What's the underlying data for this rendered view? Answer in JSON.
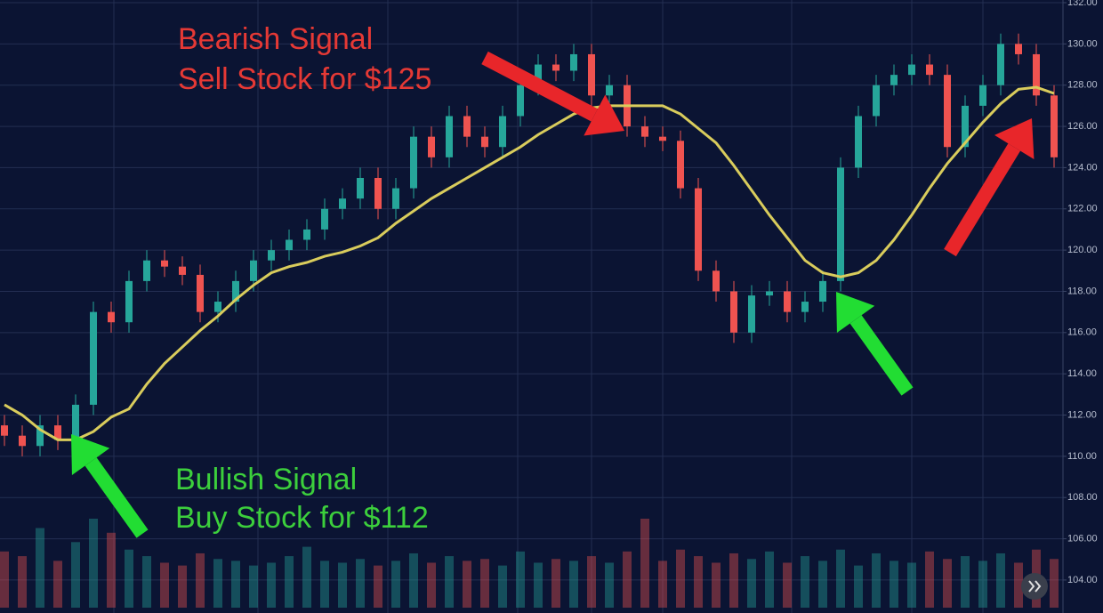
{
  "chart_data": {
    "type": "candlestick",
    "categories": [
      null,
      null,
      null,
      null,
      null,
      null,
      null,
      null,
      null,
      null,
      null,
      null,
      null,
      null,
      null,
      null,
      null,
      null,
      null,
      null,
      null,
      null,
      null,
      null,
      null,
      null,
      null,
      null,
      null,
      null,
      null,
      null,
      null,
      null,
      null,
      null,
      null,
      null,
      null,
      null,
      null,
      null,
      null,
      null,
      null,
      null,
      null,
      null,
      null,
      null,
      null,
      null,
      null,
      null,
      null,
      null,
      null,
      null,
      null,
      null
    ],
    "open": [
      111.5,
      111,
      110.5,
      111.5,
      110.8,
      112.5,
      117,
      116.5,
      118.5,
      119.5,
      119.2,
      118.8,
      117,
      117.5,
      118.5,
      119.5,
      120,
      120.5,
      121,
      122,
      122.5,
      123.5,
      122,
      123,
      125.5,
      124.5,
      126.5,
      125.5,
      125,
      126.5,
      128,
      129,
      128.7,
      129.5,
      127.5,
      128,
      126,
      125.5,
      125.3,
      123,
      119,
      118,
      116,
      117.8,
      118,
      117,
      117.5,
      118.5,
      124,
      126.5,
      128,
      128.5,
      129,
      128.5,
      125,
      127,
      128,
      130,
      129.5,
      127.5
    ],
    "high": [
      112,
      111.5,
      112,
      112,
      113,
      117.5,
      117.5,
      119,
      120,
      120,
      119.7,
      119.3,
      118,
      119,
      120,
      120.5,
      121,
      121.5,
      122.5,
      123,
      124,
      124,
      123.5,
      126,
      126,
      127,
      127,
      126,
      127,
      128.5,
      129.5,
      129.5,
      130,
      130,
      128.5,
      128.5,
      126.5,
      126,
      125.8,
      123.5,
      119.5,
      118.5,
      118.3,
      118.5,
      118.5,
      118,
      119,
      124.5,
      127,
      128.5,
      129,
      129.5,
      129.5,
      129,
      127.5,
      128.5,
      130.5,
      130.5,
      130,
      128
    ],
    "low": [
      110.5,
      110,
      110,
      110.3,
      110.3,
      112,
      116,
      116,
      118,
      118.7,
      118.3,
      116.5,
      116.5,
      117,
      118,
      119,
      119.5,
      120,
      120.5,
      121.5,
      122,
      121.5,
      121.5,
      122.5,
      124,
      124,
      125,
      124.5,
      124.5,
      126,
      127.5,
      128.2,
      128.2,
      127,
      127,
      125.5,
      125,
      124.8,
      122.5,
      118.5,
      117.5,
      115.5,
      115.5,
      117.3,
      116.5,
      116.5,
      117,
      118,
      123.5,
      126,
      127.5,
      128,
      128,
      124.5,
      124.5,
      126.5,
      127.5,
      129,
      127,
      124
    ],
    "close": [
      111,
      110.5,
      111.5,
      110.8,
      112.5,
      117,
      116.5,
      118.5,
      119.5,
      119.2,
      118.8,
      117,
      117.5,
      118.5,
      119.5,
      120,
      120.5,
      121,
      122,
      122.5,
      123.5,
      122,
      123,
      125.5,
      124.5,
      126.5,
      125.5,
      125,
      126.5,
      128,
      129,
      128.7,
      129.5,
      127.5,
      128,
      126,
      125.5,
      125.3,
      123,
      119,
      118,
      116,
      117.8,
      118,
      117,
      117.5,
      118.5,
      124,
      126.5,
      128,
      128.5,
      129,
      128.5,
      125,
      127,
      128,
      130,
      129.5,
      127.5,
      124.5
    ],
    "volume": [
      60,
      55,
      85,
      50,
      70,
      95,
      80,
      62,
      55,
      48,
      45,
      58,
      52,
      50,
      45,
      48,
      55,
      65,
      50,
      48,
      52,
      45,
      50,
      58,
      48,
      55,
      50,
      52,
      45,
      60,
      48,
      52,
      50,
      55,
      48,
      60,
      95,
      50,
      62,
      55,
      48,
      58,
      52,
      60,
      48,
      55,
      50,
      62,
      45,
      58,
      50,
      48,
      60,
      52,
      55,
      50,
      58,
      48,
      62,
      52
    ],
    "moving_average": [
      112.5,
      112,
      111.3,
      110.8,
      110.8,
      111.2,
      111.9,
      112.3,
      113.5,
      114.5,
      115.3,
      116.1,
      116.8,
      117.6,
      118.3,
      118.9,
      119.2,
      119.4,
      119.7,
      119.9,
      120.2,
      120.6,
      121.3,
      121.9,
      122.5,
      123,
      123.5,
      124,
      124.5,
      125,
      125.6,
      126.1,
      126.6,
      126.9,
      127,
      127,
      127,
      127,
      126.6,
      125.9,
      125.2,
      124.1,
      122.9,
      121.7,
      120.6,
      119.5,
      118.9,
      118.7,
      118.9,
      119.5,
      120.5,
      121.7,
      123,
      124.2,
      125.2,
      126.2,
      127.1,
      127.8,
      127.9,
      127.6
    ],
    "up_color": "#26a69a",
    "down_color": "#ef5350",
    "ma_color": "#d9cc5c",
    "ylim": [
      102.4,
      132.13
    ],
    "yticks": [
      {
        "value": 104,
        "label": "104.00"
      },
      {
        "value": 106,
        "label": "106.00"
      },
      {
        "value": 108,
        "label": "108.00"
      },
      {
        "value": 110,
        "label": "110.00"
      },
      {
        "value": 112,
        "label": "112.00"
      },
      {
        "value": 114,
        "label": "114.00"
      },
      {
        "value": 116,
        "label": "116.00"
      },
      {
        "value": 118,
        "label": "118.00"
      },
      {
        "value": 120,
        "label": "120.00"
      },
      {
        "value": 122,
        "label": "122.00"
      },
      {
        "value": 124,
        "label": "124.00"
      },
      {
        "value": 126,
        "label": "126.00"
      },
      {
        "value": 128,
        "label": "128.00"
      },
      {
        "value": 130,
        "label": "130.00"
      },
      {
        "value": 132,
        "label": "132.00"
      }
    ],
    "grid": true,
    "annotations": [
      {
        "text": "Bearish Signal",
        "color": "#e53935"
      },
      {
        "text": "Sell Stock for $125",
        "color": "#e53935"
      },
      {
        "text": "Bullish Signal",
        "color": "#3ccf3c"
      },
      {
        "text": "Buy Stock for $112",
        "color": "#3ccf3c"
      }
    ]
  }
}
